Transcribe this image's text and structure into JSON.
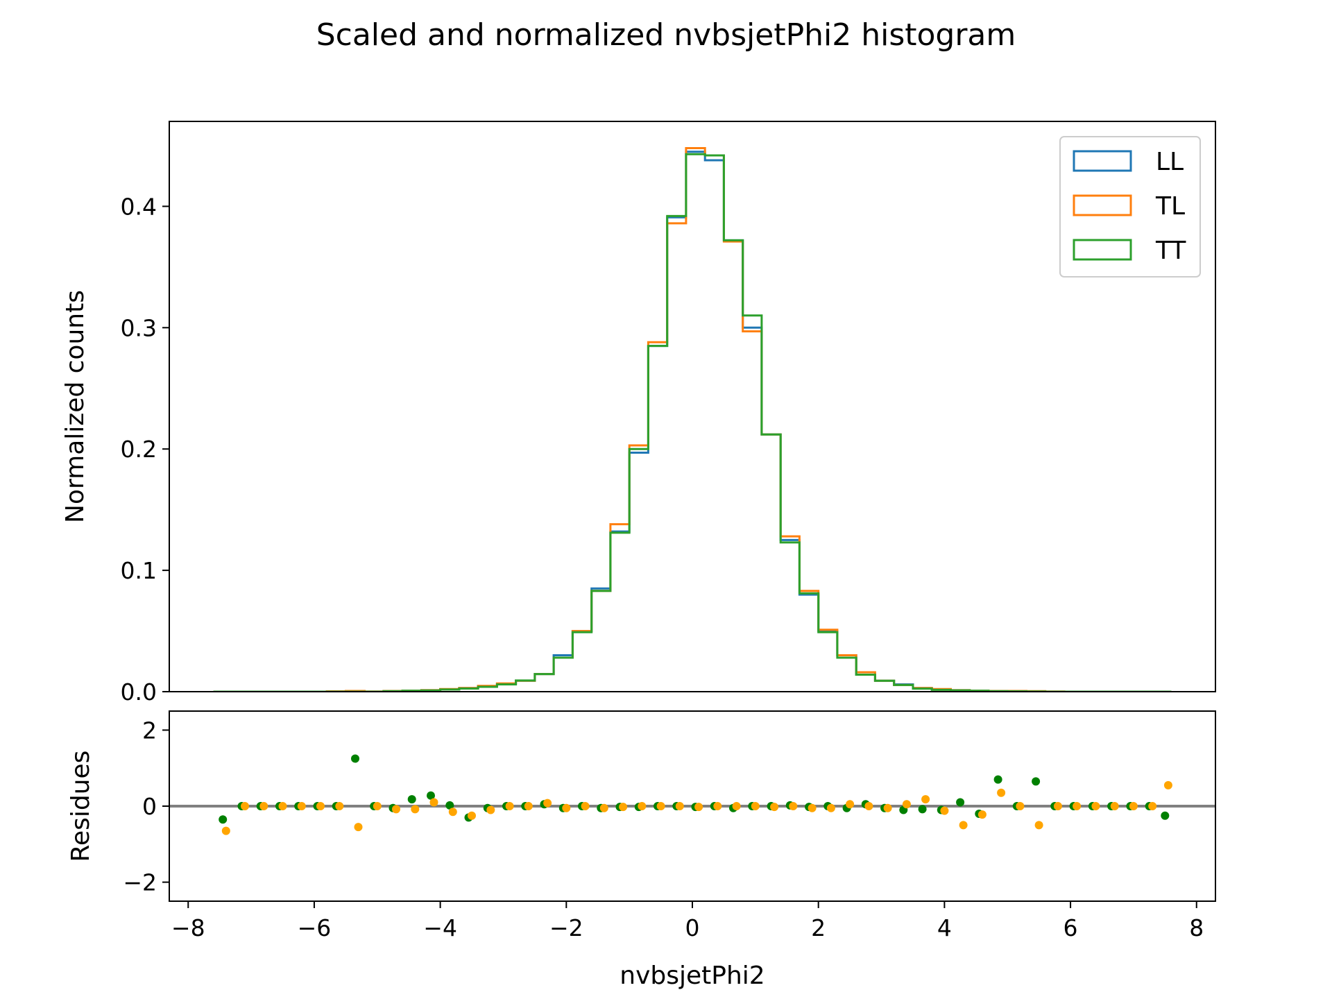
{
  "chart_data": [
    {
      "type": "line",
      "title": "Scaled and normalized nvbsjetPhi2 histogram",
      "ylabel": "Normalized counts",
      "xlim": [
        -8.3,
        8.3
      ],
      "ylim": [
        0,
        0.47
      ],
      "y_ticks": [
        "0.0",
        "0.1",
        "0.2",
        "0.3",
        "0.4"
      ],
      "y_tick_values": [
        0,
        0.1,
        0.2,
        0.3,
        0.4
      ],
      "legend": "top-right",
      "grid": false,
      "bin_edges": [
        -7.6,
        -7.3,
        -7.0,
        -6.7,
        -6.4,
        -6.1,
        -5.8,
        -5.5,
        -5.2,
        -4.9,
        -4.6,
        -4.3,
        -4.0,
        -3.7,
        -3.4,
        -3.1,
        -2.8,
        -2.5,
        -2.2,
        -1.9,
        -1.6,
        -1.3,
        -1.0,
        -0.7,
        -0.4,
        -0.1,
        0.2,
        0.5,
        0.8,
        1.1,
        1.4,
        1.7,
        2.0,
        2.3,
        2.6,
        2.9,
        3.2,
        3.5,
        3.8,
        4.1,
        4.4,
        4.7,
        5.0,
        5.3,
        5.6,
        5.9,
        6.2,
        6.5,
        6.8,
        7.1,
        7.4,
        7.6
      ],
      "series": [
        {
          "name": "LL",
          "color": "#1f77b4",
          "values": [
            0,
            0,
            0,
            0,
            0,
            0,
            0,
            0,
            0,
            0.0005,
            0.0008,
            0.0012,
            0.002,
            0.003,
            0.0045,
            0.0065,
            0.009,
            0.0145,
            0.03,
            0.05,
            0.085,
            0.132,
            0.197,
            0.285,
            0.391,
            0.445,
            0.438,
            0.372,
            0.3,
            0.212,
            0.125,
            0.08,
            0.05,
            0.03,
            0.014,
            0.009,
            0.006,
            0.003,
            0.002,
            0.0012,
            0.0008,
            0.0005,
            0.0003,
            0.0002,
            0,
            0,
            0,
            0,
            0,
            0,
            0
          ]
        },
        {
          "name": "TL",
          "color": "#ff7f0e",
          "values": [
            0,
            0,
            0,
            0,
            0,
            0,
            0.0003,
            0.0006,
            0.0002,
            0.0006,
            0.0008,
            0.0012,
            0.0022,
            0.003,
            0.0048,
            0.0068,
            0.009,
            0.0145,
            0.028,
            0.05,
            0.083,
            0.138,
            0.203,
            0.288,
            0.386,
            0.448,
            0.442,
            0.371,
            0.297,
            0.212,
            0.128,
            0.083,
            0.051,
            0.03,
            0.016,
            0.009,
            0.0055,
            0.003,
            0.0022,
            0.0012,
            0.0008,
            0.0006,
            0.0006,
            0.0004,
            0.0002,
            0,
            0,
            0,
            0,
            0,
            0
          ]
        },
        {
          "name": "TT",
          "color": "#2ca02c",
          "values": [
            0,
            0,
            0,
            0,
            0,
            0,
            0,
            0,
            0,
            0.0004,
            0.0008,
            0.001,
            0.0018,
            0.0026,
            0.004,
            0.006,
            0.0092,
            0.0145,
            0.028,
            0.049,
            0.083,
            0.131,
            0.2,
            0.285,
            0.392,
            0.443,
            0.442,
            0.372,
            0.31,
            0.212,
            0.123,
            0.081,
            0.049,
            0.028,
            0.014,
            0.009,
            0.0055,
            0.0025,
            0.0015,
            0.0011,
            0.0008,
            0.0004,
            0.0003,
            0.0002,
            0,
            0,
            0,
            0,
            0,
            0,
            0
          ]
        }
      ]
    },
    {
      "type": "scatter",
      "xlabel": "nvbsjetPhi2",
      "ylabel": "Residues",
      "xlim": [
        -8.3,
        8.3
      ],
      "ylim": [
        -2.5,
        2.5
      ],
      "x_ticks": [
        "−8",
        "−6",
        "−4",
        "−2",
        "0",
        "2",
        "4",
        "6",
        "8"
      ],
      "x_tick_values": [
        -8,
        -6,
        -4,
        -2,
        0,
        2,
        4,
        6,
        8
      ],
      "y_ticks": [
        "2",
        "0",
        "−2"
      ],
      "y_tick_values": [
        2,
        0,
        -2
      ],
      "reference_line": {
        "y": 0,
        "color": "#808080"
      },
      "series": [
        {
          "name": "",
          "color": "#008000",
          "points": [
            [
              -7.45,
              -0.35
            ],
            [
              -7.15,
              0
            ],
            [
              -6.85,
              0
            ],
            [
              -6.55,
              0
            ],
            [
              -6.25,
              0
            ],
            [
              -5.95,
              0
            ],
            [
              -5.65,
              0
            ],
            [
              -5.35,
              1.25
            ],
            [
              -5.05,
              0
            ],
            [
              -4.75,
              -0.05
            ],
            [
              -4.45,
              0.18
            ],
            [
              -4.15,
              0.28
            ],
            [
              -3.85,
              0.02
            ],
            [
              -3.55,
              -0.3
            ],
            [
              -3.25,
              -0.05
            ],
            [
              -2.95,
              0
            ],
            [
              -2.65,
              0
            ],
            [
              -2.35,
              0.05
            ],
            [
              -2.05,
              -0.05
            ],
            [
              -1.75,
              0
            ],
            [
              -1.45,
              -0.05
            ],
            [
              -1.15,
              -0.02
            ],
            [
              -0.85,
              -0.02
            ],
            [
              -0.55,
              0
            ],
            [
              -0.25,
              0
            ],
            [
              0.05,
              -0.02
            ],
            [
              0.35,
              0
            ],
            [
              0.65,
              -0.05
            ],
            [
              0.95,
              0
            ],
            [
              1.25,
              0
            ],
            [
              1.55,
              0.02
            ],
            [
              1.85,
              -0.02
            ],
            [
              2.15,
              0
            ],
            [
              2.45,
              -0.05
            ],
            [
              2.75,
              0.05
            ],
            [
              3.05,
              -0.05
            ],
            [
              3.35,
              -0.1
            ],
            [
              3.65,
              -0.08
            ],
            [
              3.95,
              -0.1
            ],
            [
              4.25,
              0.1
            ],
            [
              4.55,
              -0.2
            ],
            [
              4.85,
              0.7
            ],
            [
              5.15,
              0
            ],
            [
              5.45,
              0.65
            ],
            [
              5.75,
              0
            ],
            [
              6.05,
              0
            ],
            [
              6.35,
              0
            ],
            [
              6.65,
              0
            ],
            [
              6.95,
              0
            ],
            [
              7.25,
              0
            ],
            [
              7.5,
              -0.25
            ]
          ]
        },
        {
          "name": "",
          "color": "#ffa500",
          "points": [
            [
              -7.4,
              -0.65
            ],
            [
              -7.1,
              0
            ],
            [
              -6.8,
              0
            ],
            [
              -6.5,
              0
            ],
            [
              -6.2,
              0
            ],
            [
              -5.9,
              0
            ],
            [
              -5.6,
              0
            ],
            [
              -5.3,
              -0.55
            ],
            [
              -5.0,
              0
            ],
            [
              -4.7,
              -0.08
            ],
            [
              -4.4,
              -0.08
            ],
            [
              -4.1,
              0.1
            ],
            [
              -3.8,
              -0.15
            ],
            [
              -3.5,
              -0.25
            ],
            [
              -3.2,
              -0.1
            ],
            [
              -2.9,
              0
            ],
            [
              -2.6,
              0
            ],
            [
              -2.3,
              0.08
            ],
            [
              -2.0,
              -0.05
            ],
            [
              -1.7,
              0
            ],
            [
              -1.4,
              -0.05
            ],
            [
              -1.1,
              -0.02
            ],
            [
              -0.8,
              0
            ],
            [
              -0.5,
              0
            ],
            [
              -0.2,
              0
            ],
            [
              0.1,
              -0.02
            ],
            [
              0.4,
              0
            ],
            [
              0.7,
              0
            ],
            [
              1.0,
              0
            ],
            [
              1.3,
              -0.02
            ],
            [
              1.6,
              0
            ],
            [
              1.9,
              -0.05
            ],
            [
              2.2,
              -0.05
            ],
            [
              2.5,
              0.05
            ],
            [
              2.8,
              0
            ],
            [
              3.1,
              -0.05
            ],
            [
              3.4,
              0.05
            ],
            [
              3.7,
              0.18
            ],
            [
              4.0,
              -0.12
            ],
            [
              4.3,
              -0.5
            ],
            [
              4.6,
              -0.22
            ],
            [
              4.9,
              0.35
            ],
            [
              5.2,
              0
            ],
            [
              5.5,
              -0.5
            ],
            [
              5.8,
              0
            ],
            [
              6.1,
              0
            ],
            [
              6.4,
              0
            ],
            [
              6.7,
              0
            ],
            [
              7.0,
              0
            ],
            [
              7.3,
              0
            ],
            [
              7.55,
              0.55
            ]
          ]
        }
      ]
    }
  ]
}
